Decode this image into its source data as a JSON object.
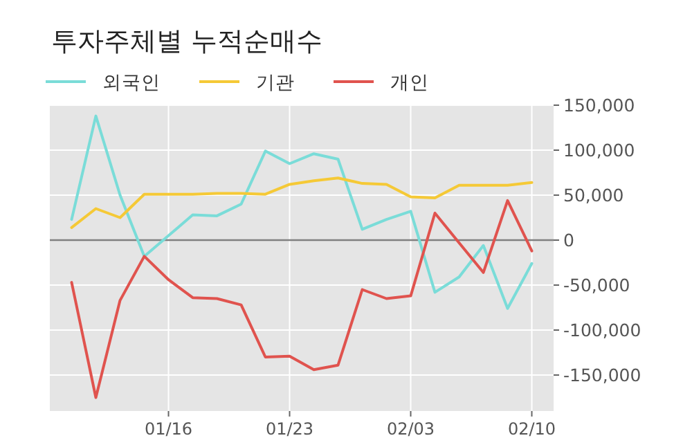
{
  "chart_data": {
    "type": "line",
    "title": "투자주체별 누적순매수",
    "categories": [
      null,
      null,
      null,
      null,
      "01/16",
      null,
      null,
      null,
      null,
      "01/23",
      null,
      null,
      null,
      null,
      "02/03",
      null,
      null,
      null,
      null,
      "02/10"
    ],
    "series": [
      {
        "name": "외국인",
        "color": "#7adcd8",
        "values": [
          23000,
          138000,
          50000,
          -18000,
          5000,
          28000,
          27000,
          40000,
          99000,
          85000,
          96000,
          90000,
          12000,
          23000,
          32000,
          -58000,
          -41000,
          -6000,
          -76000,
          -26000
        ]
      },
      {
        "name": "기관",
        "color": "#f5c936",
        "values": [
          14000,
          35000,
          25000,
          51000,
          51000,
          51000,
          52000,
          52000,
          51000,
          62000,
          66000,
          69000,
          63000,
          62000,
          48000,
          47000,
          61000,
          61000,
          61000,
          64000
        ]
      },
      {
        "name": "개인",
        "color": "#e0534e",
        "values": [
          -47000,
          -175000,
          -67000,
          -18000,
          -44000,
          -64000,
          -65000,
          -72000,
          -130000,
          -129000,
          -144000,
          -139000,
          -55000,
          -65000,
          -62000,
          30000,
          -3000,
          -36000,
          44000,
          -12000
        ]
      }
    ],
    "ylim": [
      -190000,
      150000
    ],
    "yticks": [
      {
        "value": -150000,
        "label": "-150,000"
      },
      {
        "value": -100000,
        "label": "-100,000"
      },
      {
        "value": -50000,
        "label": "-50,000"
      },
      0,
      {
        "value": 50000,
        "label": "50,000"
      },
      {
        "value": 100000,
        "label": "100,000"
      },
      {
        "value": 150000,
        "label": "150,000"
      }
    ],
    "grid": true,
    "legend": "top left",
    "ref_lines": [
      {
        "axis": "y",
        "value": 0,
        "color": "#808080"
      }
    ]
  }
}
